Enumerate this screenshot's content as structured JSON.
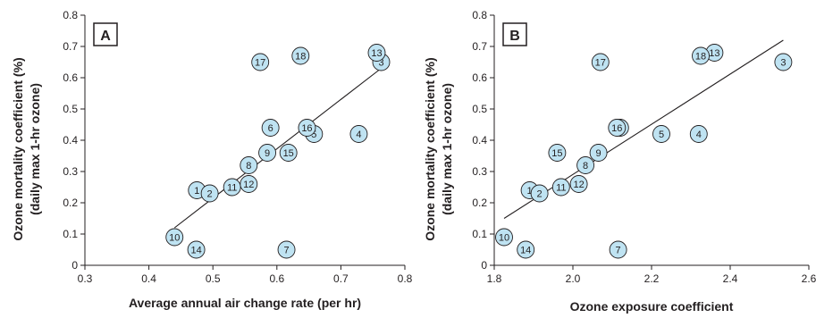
{
  "chart_data": [
    {
      "type": "scatter",
      "panel_label": "A",
      "xlabel": "Average annual air change rate (per hr)",
      "ylabel_lines": [
        "Ozone mortality coefficient (%)",
        "(daily max 1-hr ozone)"
      ],
      "xlim": [
        0.3,
        0.8
      ],
      "ylim": [
        0,
        0.8
      ],
      "x_ticks": [
        "0.3",
        "0.4",
        "0.5",
        "0.6",
        "0.7",
        "0.8"
      ],
      "y_ticks": [
        "0",
        "0.1",
        "0.2",
        "0.3",
        "0.4",
        "0.5",
        "0.6",
        "0.7",
        "0.8"
      ],
      "points": [
        {
          "label": "1",
          "x": 0.475,
          "y": 0.24
        },
        {
          "label": "2",
          "x": 0.495,
          "y": 0.23
        },
        {
          "label": "3",
          "x": 0.763,
          "y": 0.65
        },
        {
          "label": "4",
          "x": 0.728,
          "y": 0.42
        },
        {
          "label": "5",
          "x": 0.658,
          "y": 0.42
        },
        {
          "label": "6",
          "x": 0.59,
          "y": 0.44
        },
        {
          "label": "7",
          "x": 0.615,
          "y": 0.05
        },
        {
          "label": "8",
          "x": 0.556,
          "y": 0.32
        },
        {
          "label": "9",
          "x": 0.585,
          "y": 0.36
        },
        {
          "label": "10",
          "x": 0.44,
          "y": 0.09
        },
        {
          "label": "11",
          "x": 0.53,
          "y": 0.25
        },
        {
          "label": "12",
          "x": 0.556,
          "y": 0.26
        },
        {
          "label": "13",
          "x": 0.756,
          "y": 0.68
        },
        {
          "label": "14",
          "x": 0.474,
          "y": 0.05
        },
        {
          "label": "15",
          "x": 0.618,
          "y": 0.36
        },
        {
          "label": "16",
          "x": 0.647,
          "y": 0.44
        },
        {
          "label": "17",
          "x": 0.574,
          "y": 0.65
        },
        {
          "label": "18",
          "x": 0.637,
          "y": 0.67
        }
      ],
      "fit_line": {
        "x": [
          0.44,
          0.763
        ],
        "y": [
          0.12,
          0.63
        ]
      }
    },
    {
      "type": "scatter",
      "panel_label": "B",
      "xlabel": "Ozone exposure coefficient",
      "ylabel_lines": [
        "Ozone mortality coefficient (%)",
        "(daily max 1-hr ozone)"
      ],
      "xlim": [
        1.8,
        2.6
      ],
      "ylim": [
        0,
        0.8
      ],
      "x_ticks": [
        "1.8",
        "2.0",
        "2.2",
        "2.4",
        "2.6"
      ],
      "y_ticks": [
        "0",
        "0.1",
        "0.2",
        "0.3",
        "0.4",
        "0.5",
        "0.6",
        "0.7",
        "0.8"
      ],
      "points": [
        {
          "label": "1",
          "x": 1.89,
          "y": 0.24
        },
        {
          "label": "2",
          "x": 1.915,
          "y": 0.23
        },
        {
          "label": "3",
          "x": 2.535,
          "y": 0.65
        },
        {
          "label": "4",
          "x": 2.32,
          "y": 0.42
        },
        {
          "label": "5",
          "x": 2.225,
          "y": 0.42
        },
        {
          "label": "6",
          "x": 2.12,
          "y": 0.44
        },
        {
          "label": "7",
          "x": 2.115,
          "y": 0.05
        },
        {
          "label": "8",
          "x": 2.032,
          "y": 0.32
        },
        {
          "label": "9",
          "x": 2.065,
          "y": 0.36
        },
        {
          "label": "10",
          "x": 1.825,
          "y": 0.09
        },
        {
          "label": "11",
          "x": 1.97,
          "y": 0.25
        },
        {
          "label": "12",
          "x": 2.015,
          "y": 0.26
        },
        {
          "label": "13",
          "x": 2.36,
          "y": 0.68
        },
        {
          "label": "14",
          "x": 1.88,
          "y": 0.05
        },
        {
          "label": "15",
          "x": 1.96,
          "y": 0.36
        },
        {
          "label": "16",
          "x": 2.112,
          "y": 0.44
        },
        {
          "label": "17",
          "x": 2.07,
          "y": 0.65
        },
        {
          "label": "18",
          "x": 2.325,
          "y": 0.67
        }
      ],
      "fit_line": {
        "x": [
          1.825,
          2.535
        ],
        "y": [
          0.15,
          0.72
        ]
      }
    }
  ]
}
